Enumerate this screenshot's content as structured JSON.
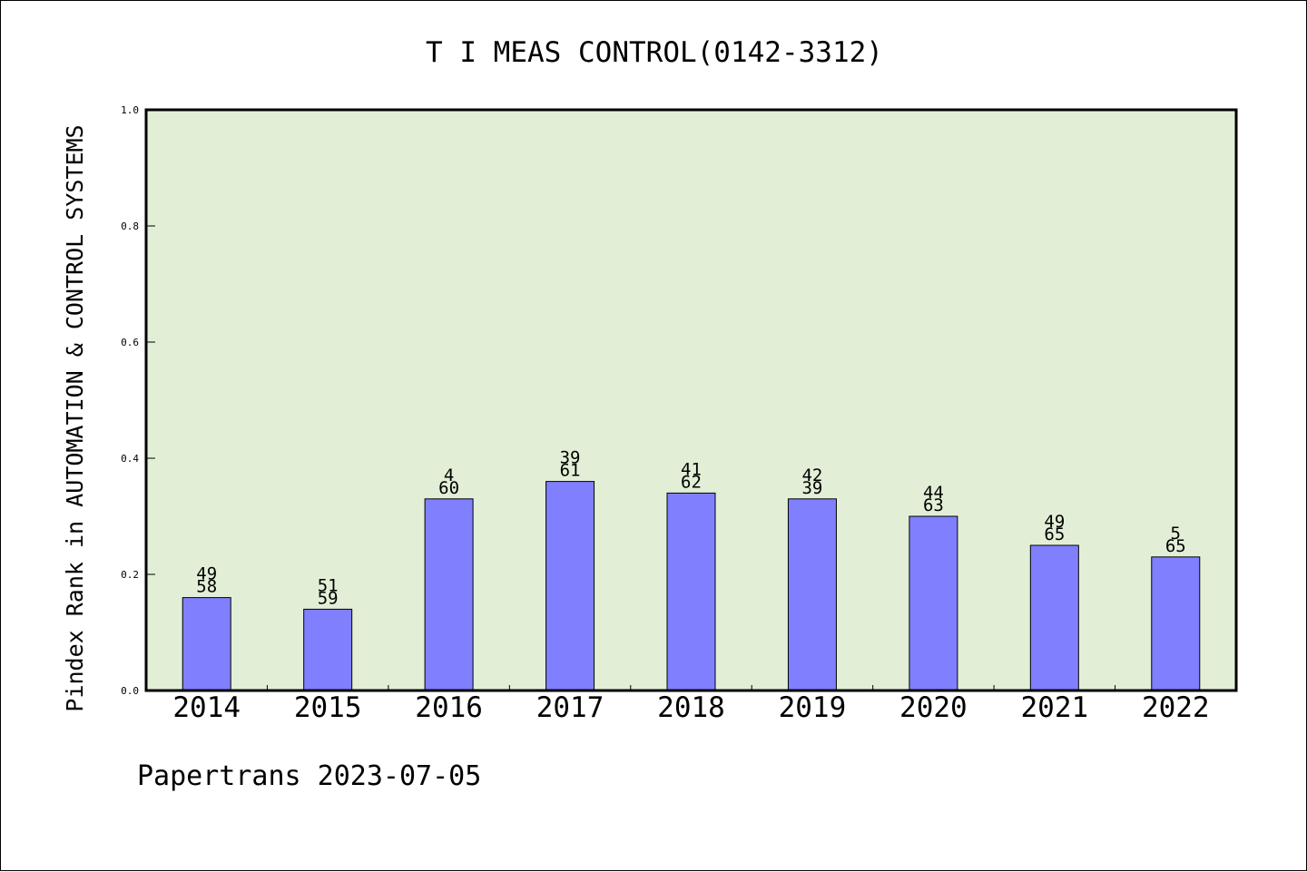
{
  "chart_data": {
    "type": "bar",
    "title": "T I MEAS CONTROL(0142-3312)",
    "ylabel": "Pindex Rank in AUTOMATION & CONTROL SYSTEMS",
    "xlabel": "",
    "ylim": [
      0.0,
      1.0
    ],
    "yticks": [
      "0.0",
      "0.2",
      "0.4",
      "0.6",
      "0.8",
      "1.0"
    ],
    "categories": [
      "2014",
      "2015",
      "2016",
      "2017",
      "2018",
      "2019",
      "2020",
      "2021",
      "2022"
    ],
    "values": [
      0.16,
      0.14,
      0.33,
      0.36,
      0.34,
      0.33,
      0.3,
      0.25,
      0.23
    ],
    "label_top": [
      "49",
      "51",
      "4",
      "39",
      "41",
      "42",
      "44",
      "49",
      "5"
    ],
    "label_bottom": [
      "58",
      "59",
      "60",
      "61",
      "62",
      "39",
      "63",
      "65",
      "65"
    ],
    "grid": false,
    "colors": {
      "plot_background": "#e2efd6",
      "bar_fill": "#8080ff",
      "bar_stroke": "#000000",
      "axis": "#000000"
    }
  },
  "footer": {
    "text": "Papertrans 2023-07-05"
  }
}
